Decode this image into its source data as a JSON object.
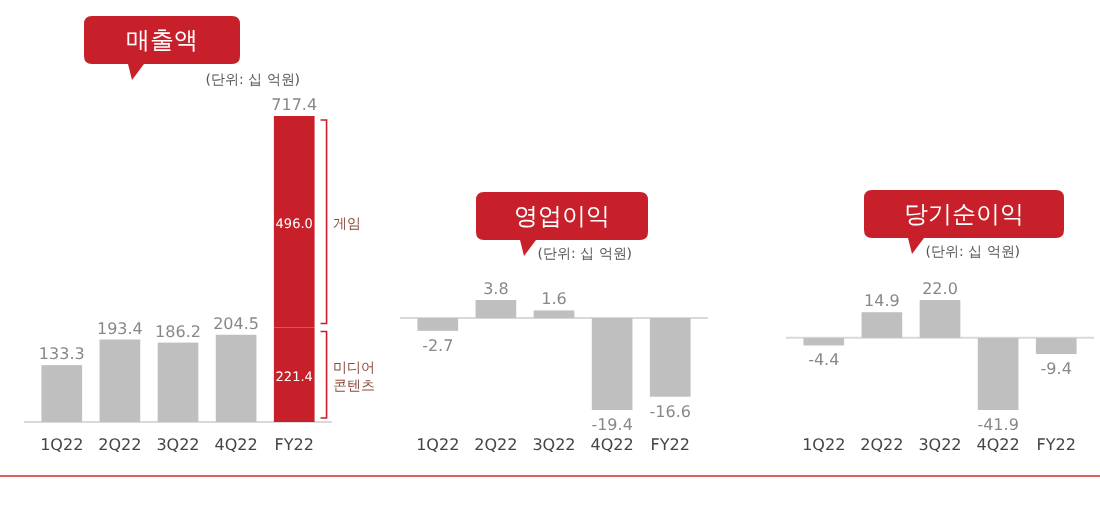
{
  "chart_data": [
    {
      "type": "bar",
      "title": "매출액",
      "subtitle": "(단위: 십 억원)",
      "stacked": true,
      "categories": [
        "1Q22",
        "2Q22",
        "3Q22",
        "4Q22",
        "FY22"
      ],
      "series": [
        {
          "color": "#bfbfbf",
          "values": [
            133.3,
            193.4,
            186.2,
            204.5,
            null
          ],
          "value_labels": [
            "133.3",
            "193.4",
            "186.2",
            "204.5",
            null
          ]
        },
        {
          "name": "미디어 콘텐츠",
          "color": "#c8202a",
          "values": [
            null,
            null,
            null,
            null,
            221.4
          ],
          "value_labels": [
            null,
            null,
            null,
            null,
            "221.4"
          ]
        },
        {
          "name": "게임",
          "color": "#c8202a",
          "values": [
            null,
            null,
            null,
            null,
            496.0
          ],
          "value_labels": [
            null,
            null,
            null,
            null,
            "496.0"
          ]
        }
      ],
      "totals": [
        null,
        null,
        null,
        null,
        "717.4"
      ]
    },
    {
      "type": "bar",
      "title": "영업이익",
      "subtitle": "(단위: 십 억원)",
      "categories": [
        "1Q22",
        "2Q22",
        "3Q22",
        "4Q22",
        "FY22"
      ],
      "values": [
        -2.7,
        3.8,
        1.6,
        -19.4,
        -16.6
      ],
      "value_labels": [
        "-2.7",
        "3.8",
        "1.6",
        "-19.4",
        "-16.6"
      ],
      "color": "#bfbfbf"
    },
    {
      "type": "bar",
      "title": "당기순이익",
      "subtitle": "(단위: 십 억원)",
      "categories": [
        "1Q22",
        "2Q22",
        "3Q22",
        "4Q22",
        "FY22"
      ],
      "values": [
        -4.4,
        14.9,
        22.0,
        -41.9,
        -9.4
      ],
      "value_labels": [
        "-4.4",
        "14.9",
        "22.0",
        "-41.9",
        "-9.4"
      ],
      "color": "#bfbfbf"
    }
  ]
}
